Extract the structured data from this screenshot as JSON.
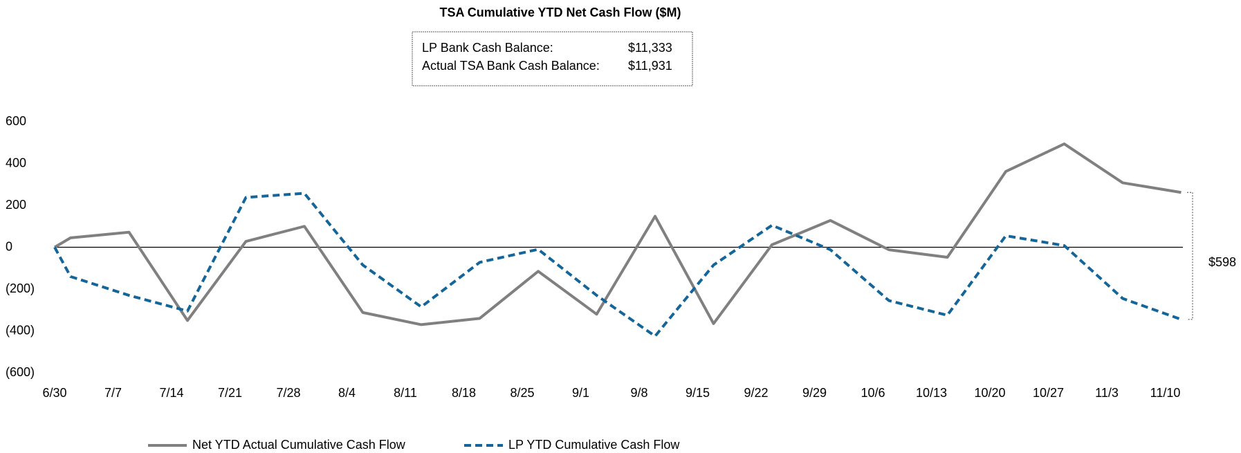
{
  "chart_data": {
    "type": "line",
    "title": "TSA Cumulative YTD Net Cash Flow ($M)",
    "info_box": [
      {
        "label": "LP Bank Cash Balance:",
        "value": "$11,333"
      },
      {
        "label": "Actual TSA Bank Cash Balance:",
        "value": "$11,931"
      }
    ],
    "categories": [
      null,
      "6/30",
      "7/7",
      "7/14",
      "7/21",
      "7/28",
      "8/4",
      "8/11",
      "8/18",
      "8/25",
      "9/1",
      "9/8",
      "9/15",
      "9/22",
      "9/29",
      "10/6",
      "10/13",
      "10/20",
      "10/27",
      "11/3",
      "11/10"
    ],
    "series": [
      {
        "name": "Net YTD Actual Cumulative Cash Flow",
        "color": "#808080",
        "dash": false,
        "values": [
          0,
          45,
          72,
          -350,
          28,
          100,
          -312,
          -370,
          -340,
          -115,
          -320,
          148,
          -365,
          12,
          128,
          -12,
          -48,
          362,
          494,
          308,
          262
        ]
      },
      {
        "name": "LP YTD Cumulative Cash Flow",
        "color": "#14669a",
        "dash": true,
        "values": [
          0,
          -140,
          -230,
          -305,
          238,
          258,
          -85,
          -285,
          -72,
          -10,
          -230,
          -425,
          -85,
          105,
          -12,
          -255,
          -325,
          55,
          8,
          -245,
          -345
        ]
      }
    ],
    "ylim": [
      -600,
      600
    ],
    "yticks": [
      {
        "value": -600,
        "label": "(600)"
      },
      {
        "value": -400,
        "label": "(400)"
      },
      {
        "value": -200,
        "label": "(200)"
      },
      0,
      200,
      400,
      600
    ],
    "annotation": "$598",
    "grid": false
  }
}
